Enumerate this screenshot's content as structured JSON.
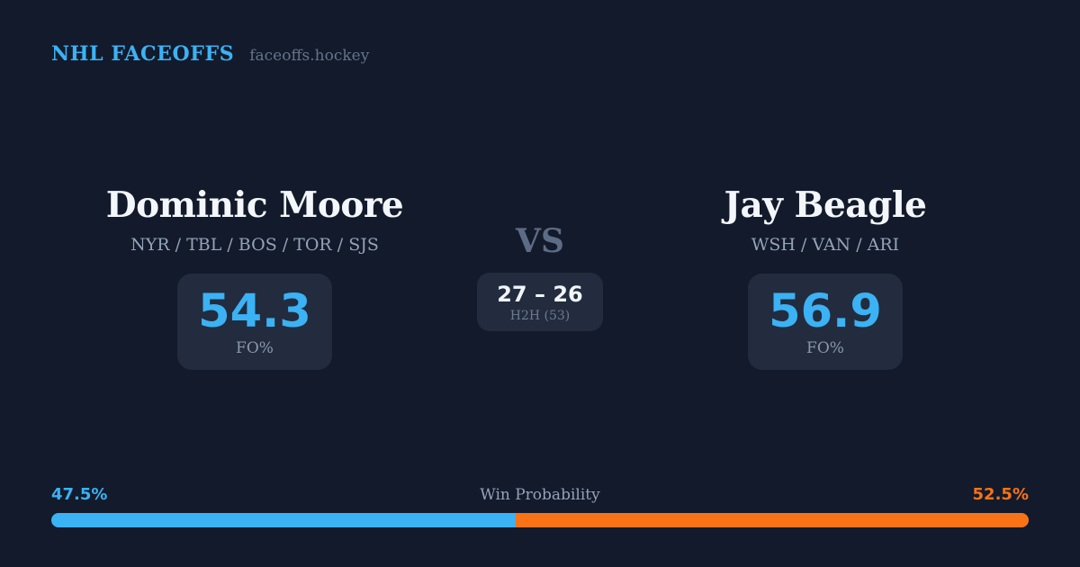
{
  "colors": {
    "background": "#121a2b",
    "card_background": "#222c3e",
    "accent_blue": "#3bb2f4",
    "accent_orange": "#f97316",
    "text_primary": "#f3f6fa",
    "text_muted": "#94a3b8",
    "text_dim": "#64748b"
  },
  "header": {
    "brand": "NHL FACEOFFS",
    "site": "faceoffs.hockey"
  },
  "players": {
    "left": {
      "name": "Dominic Moore",
      "teams": "NYR / TBL / BOS / TOR / SJS",
      "stat_value": "54.3",
      "stat_label": "FO%"
    },
    "right": {
      "name": "Jay Beagle",
      "teams": "WSH / VAN / ARI",
      "stat_value": "56.9",
      "stat_label": "FO%"
    }
  },
  "versus": {
    "label": "VS",
    "h2h_score": "27 – 26",
    "h2h_label": "H2H (53)"
  },
  "win_probability": {
    "title": "Win Probability",
    "left_label": "47.5%",
    "right_label": "52.5%",
    "left_value": 47.5,
    "right_value": 52.5,
    "left_color": "#3bb2f4",
    "right_color": "#f97316"
  }
}
